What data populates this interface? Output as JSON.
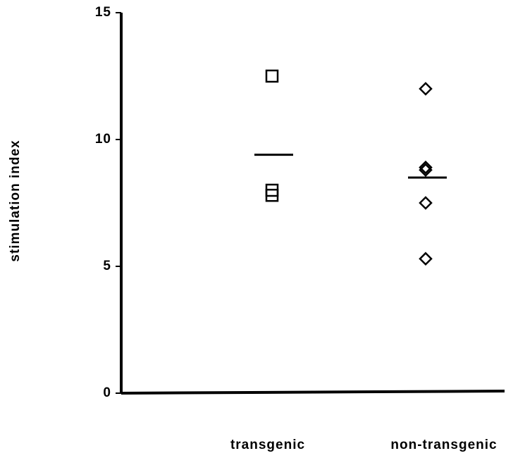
{
  "chart_data": {
    "type": "dot",
    "ylabel": "stimulation index",
    "categories": [
      "transgenic",
      "non-transgenic"
    ],
    "values": [
      [
        12.5,
        8.0,
        7.8
      ],
      [
        12.0,
        8.9,
        8.8,
        7.5,
        5.3
      ]
    ],
    "means": [
      9.4,
      8.5
    ],
    "markers": [
      "square",
      "diamond"
    ],
    "color": "#000000",
    "ylim": [
      0,
      15
    ],
    "yticks": [
      0,
      5,
      10,
      15
    ]
  }
}
